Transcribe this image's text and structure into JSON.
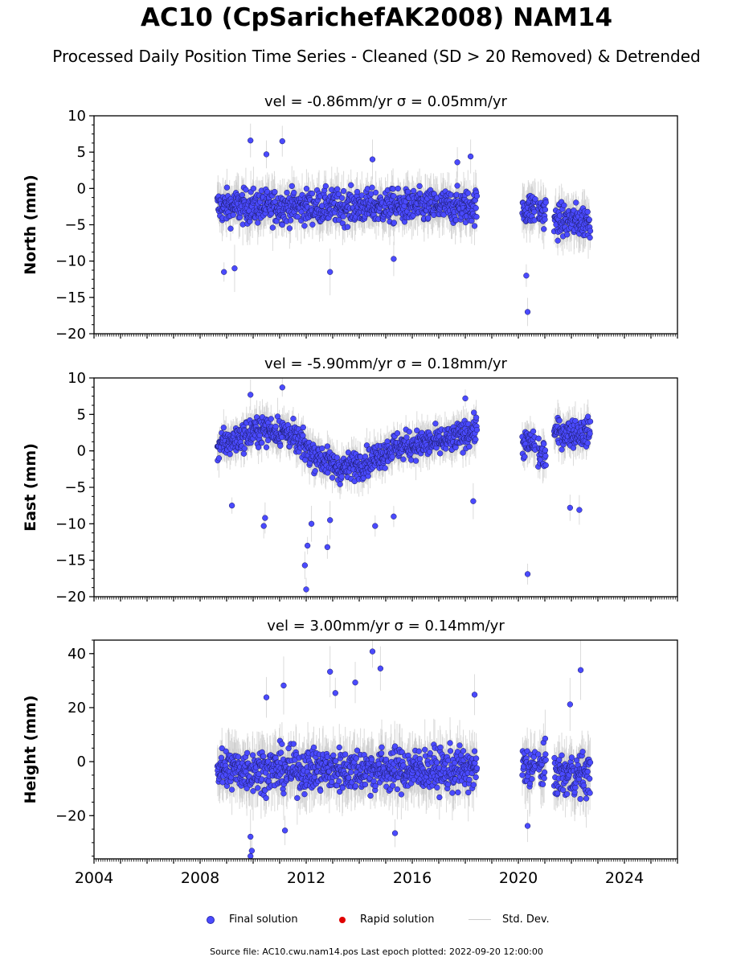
{
  "title": "AC10 (CpSarichefAK2008) NAM14",
  "subtitle": "Processed Daily Position Time Series - Cleaned (SD > 20 Removed) & Detrended",
  "legend": {
    "final": "Final solution",
    "rapid": "Rapid solution",
    "std": "Std. Dev."
  },
  "footer": "Source file: AC10.cwu.nam14.pos  Last epoch plotted: 2022-09-20 12:00:00",
  "colors": {
    "final": "#4a4aff",
    "rapid": "#e00000",
    "std": "#c8c8c8"
  },
  "chart_data": [
    {
      "type": "scatter",
      "title": "vel = -0.86mm/yr   σ = 0.05mm/yr",
      "ylabel": "North (mm)",
      "xlim": [
        2004,
        2026
      ],
      "ylim": [
        -20,
        10
      ],
      "yticks": [
        10,
        5,
        0,
        -5,
        -10,
        -15,
        -20
      ],
      "ytick_labels": [
        "10",
        "5",
        "0",
        "−5",
        "−10",
        "−15",
        "−20"
      ],
      "data_spans": [
        [
          2008.65,
          2018.45
        ],
        [
          2020.15,
          2020.65
        ],
        [
          2020.75,
          2021.05
        ],
        [
          2021.35,
          2022.72
        ]
      ],
      "center": [
        -2.5,
        -2.8,
        -3.2,
        -4.5
      ],
      "spread": 2.2,
      "outliers": [
        [
          2009.9,
          6.6
        ],
        [
          2010.5,
          4.7
        ],
        [
          2011.1,
          6.5
        ],
        [
          2008.9,
          -11.5
        ],
        [
          2009.3,
          -11
        ],
        [
          2012.9,
          -11.5
        ],
        [
          2014.5,
          4
        ],
        [
          2017.7,
          3.6
        ],
        [
          2018.2,
          4.4
        ],
        [
          2020.3,
          -12
        ],
        [
          2020.35,
          -17
        ],
        [
          2015.3,
          -9.7
        ]
      ]
    },
    {
      "type": "scatter",
      "title": "vel = -5.90mm/yr   σ = 0.18mm/yr",
      "ylabel": "East (mm)",
      "xlim": [
        2004,
        2026
      ],
      "ylim": [
        -20,
        10
      ],
      "yticks": [
        10,
        5,
        0,
        -5,
        -10,
        -15,
        -20
      ],
      "ytick_labels": [
        "10",
        "5",
        "0",
        "−5",
        "−10",
        "−15",
        "−20"
      ],
      "data_spans": [
        [
          2008.65,
          2018.45
        ],
        [
          2020.15,
          2020.65
        ],
        [
          2020.75,
          2021.05
        ],
        [
          2021.35,
          2022.72
        ]
      ],
      "trend": [
        [
          2008.6,
          0.5
        ],
        [
          2010.3,
          3.0
        ],
        [
          2011.3,
          2.5
        ],
        [
          2012.3,
          -0.5
        ],
        [
          2013.3,
          -2.5
        ],
        [
          2014.3,
          -1.5
        ],
        [
          2015.3,
          0.5
        ],
        [
          2016.5,
          1.0
        ],
        [
          2017.5,
          1.5
        ],
        [
          2018.4,
          3.0
        ]
      ],
      "center": [
        0,
        1.0,
        -0.5,
        2.5
      ],
      "spread": 1.8,
      "outliers": [
        [
          2009.9,
          7.7
        ],
        [
          2011.1,
          8.7
        ],
        [
          2012.0,
          -19
        ],
        [
          2011.95,
          -15.7
        ],
        [
          2012.05,
          -13
        ],
        [
          2012.2,
          -10
        ],
        [
          2012.8,
          -13.2
        ],
        [
          2012.9,
          -9.5
        ],
        [
          2010.4,
          -10.3
        ],
        [
          2010.45,
          -9.2
        ],
        [
          2014.6,
          -10.3
        ],
        [
          2015.3,
          -9
        ],
        [
          2009.2,
          -7.5
        ],
        [
          2018.3,
          -6.9
        ],
        [
          2020.35,
          -16.9
        ],
        [
          2021.95,
          -7.8
        ],
        [
          2022.3,
          -8.1
        ],
        [
          2018.0,
          7.2
        ]
      ]
    },
    {
      "type": "scatter",
      "title": "vel = 3.00mm/yr   σ = 0.14mm/yr",
      "ylabel": "Height (mm)",
      "xlim": [
        2004,
        2026
      ],
      "ylim": [
        -36,
        45
      ],
      "yticks": [
        40,
        20,
        0,
        -20
      ],
      "ytick_labels": [
        "40",
        "20",
        "0",
        "−20"
      ],
      "xticks": [
        2004,
        2008,
        2012,
        2016,
        2020,
        2024
      ],
      "xtick_labels": [
        "2004",
        "2008",
        "2012",
        "2016",
        "2020",
        "2024"
      ],
      "data_spans": [
        [
          2008.65,
          2018.45
        ],
        [
          2020.15,
          2020.65
        ],
        [
          2020.75,
          2021.05
        ],
        [
          2021.35,
          2022.72
        ]
      ],
      "center": [
        -3,
        -2,
        -2,
        -5
      ],
      "spread": 7.5,
      "outliers": [
        [
          2014.5,
          40.8
        ],
        [
          2014.8,
          34.5
        ],
        [
          2012.9,
          33.3
        ],
        [
          2011.15,
          28.2
        ],
        [
          2013.85,
          29.3
        ],
        [
          2010.5,
          23.8
        ],
        [
          2013.1,
          25.4
        ],
        [
          2009.95,
          -33
        ],
        [
          2009.9,
          -35
        ],
        [
          2009.9,
          -27.8
        ],
        [
          2015.35,
          -26.5
        ],
        [
          2022.35,
          33.9
        ],
        [
          2021.95,
          21.2
        ],
        [
          2020.35,
          -23.8
        ],
        [
          2018.35,
          24.8
        ],
        [
          2011.2,
          -25.5
        ]
      ]
    }
  ]
}
